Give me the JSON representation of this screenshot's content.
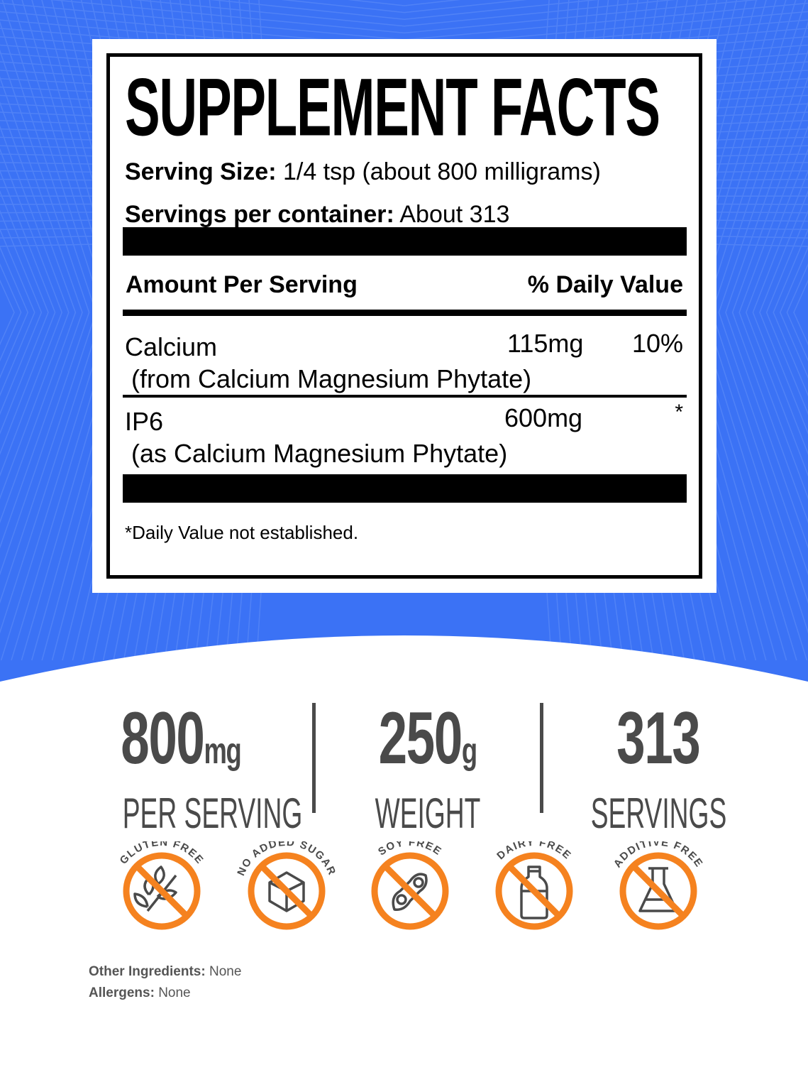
{
  "colors": {
    "background_blue": "#3b72f5",
    "badge_orange": "#f5821f",
    "stat_gray": "#4a4a4a"
  },
  "label": {
    "title": "SUPPLEMENT FACTS",
    "serving_size_label": "Serving Size:",
    "serving_size_value": "1/4 tsp (about 800 milligrams)",
    "servings_label": "Servings per container:",
    "servings_value": "About 313",
    "amount_header": "Amount Per Serving",
    "dv_header": "% Daily Value",
    "rows": [
      {
        "name": "Calcium",
        "source": "(from Calcium Magnesium Phytate)",
        "amount": "115mg",
        "dv": "10%"
      },
      {
        "name": "IP6",
        "source": "(as Calcium Magnesium Phytate)",
        "amount": "600mg",
        "dv": "*"
      }
    ],
    "footnote": "*Daily Value not established."
  },
  "stats": [
    {
      "value": "800",
      "unit": "mg",
      "label": "PER SERVING"
    },
    {
      "value": "250",
      "unit": "g",
      "label": "WEIGHT"
    },
    {
      "value": "313",
      "unit": "",
      "label": "SERVINGS"
    }
  ],
  "badges": [
    {
      "text": "GLUTEN FREE",
      "icon": "wheat-icon"
    },
    {
      "text": "NO ADDED SUGAR",
      "icon": "sugar-cube-icon"
    },
    {
      "text": "SOY FREE",
      "icon": "soybean-icon"
    },
    {
      "text": "DAIRY FREE",
      "icon": "milk-bottle-icon"
    },
    {
      "text": "ADDITIVE FREE",
      "icon": "flask-icon"
    }
  ],
  "footer": {
    "ingredients_label": "Other Ingredients:",
    "ingredients_value": "None",
    "allergens_label": "Allergens:",
    "allergens_value": "None"
  }
}
